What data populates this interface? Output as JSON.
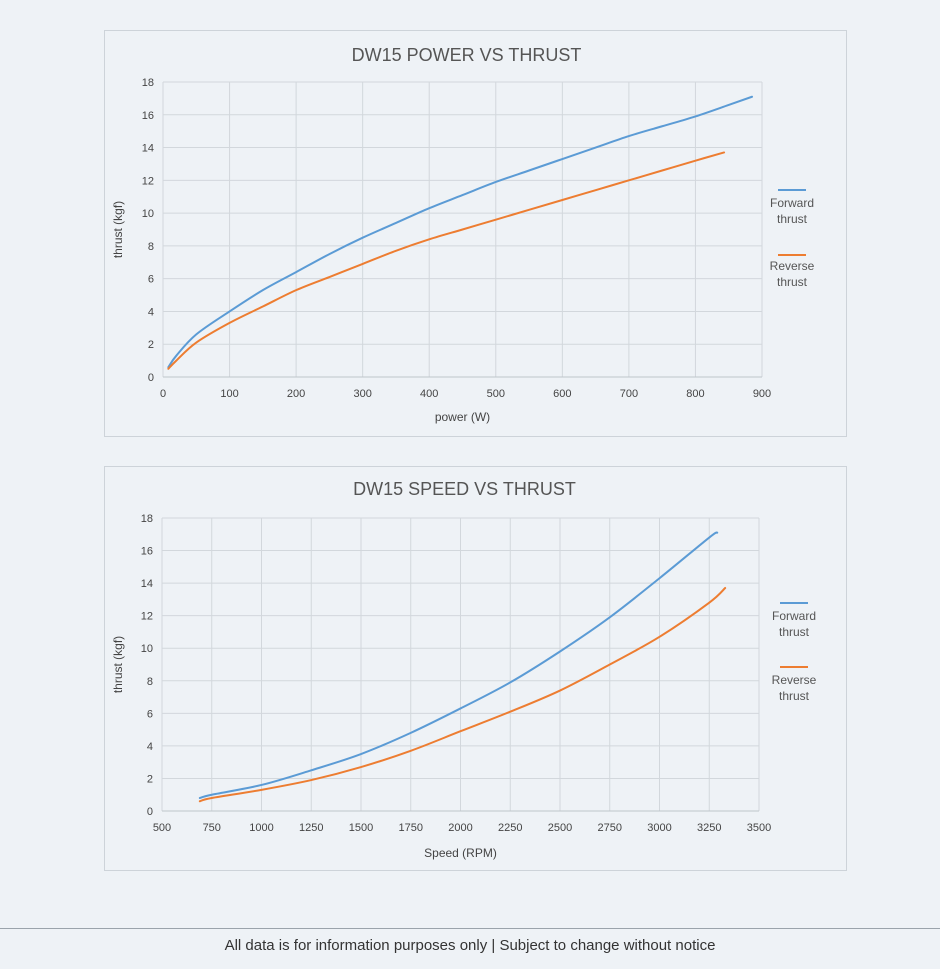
{
  "chart_data": [
    {
      "type": "line",
      "title": "DW15 POWER VS THRUST",
      "xlabel": "power (W)",
      "ylabel": "thrust (kgf)",
      "xlim": [
        0,
        900
      ],
      "ylim": [
        0,
        18
      ],
      "xticks": [
        "0",
        "100",
        "200",
        "300",
        "400",
        "500",
        "600",
        "700",
        "800",
        "900"
      ],
      "yticks": [
        "0",
        "2",
        "4",
        "6",
        "8",
        "10",
        "12",
        "14",
        "16",
        "18"
      ],
      "grid": true,
      "legend": "right",
      "series": [
        {
          "name": "Forward thrust",
          "color": "#5b9bd5",
          "x": [
            8,
            20,
            50,
            100,
            150,
            200,
            250,
            300,
            350,
            400,
            450,
            500,
            550,
            600,
            650,
            700,
            750,
            800,
            850,
            885
          ],
          "y": [
            0.6,
            1.3,
            2.6,
            4.0,
            5.3,
            6.4,
            7.5,
            8.5,
            9.4,
            10.3,
            11.1,
            11.9,
            12.6,
            13.3,
            14.0,
            14.7,
            15.3,
            15.9,
            16.6,
            17.1
          ]
        },
        {
          "name": "Reverse thrust",
          "color": "#ed7d31",
          "x": [
            8,
            20,
            50,
            100,
            150,
            200,
            250,
            300,
            350,
            400,
            450,
            500,
            550,
            600,
            650,
            700,
            750,
            800,
            843
          ],
          "y": [
            0.5,
            1.0,
            2.1,
            3.3,
            4.3,
            5.3,
            6.1,
            6.9,
            7.7,
            8.4,
            9.0,
            9.6,
            10.2,
            10.8,
            11.4,
            12.0,
            12.6,
            13.2,
            13.7
          ]
        }
      ]
    },
    {
      "type": "line",
      "title": "DW15 SPEED VS THRUST",
      "xlabel": "Speed (RPM)",
      "ylabel": "thrust (kgf)",
      "xlim": [
        500,
        3500
      ],
      "ylim": [
        0,
        18
      ],
      "xticks": [
        "500",
        "750",
        "1000",
        "1250",
        "1500",
        "1750",
        "2000",
        "2250",
        "2500",
        "2750",
        "3000",
        "3250",
        "3500"
      ],
      "yticks": [
        "0",
        "2",
        "4",
        "6",
        "8",
        "10",
        "12",
        "14",
        "16",
        "18"
      ],
      "grid": true,
      "legend": "right",
      "series": [
        {
          "name": "Forward thrust",
          "color": "#5b9bd5",
          "x": [
            690,
            750,
            1000,
            1250,
            1500,
            1750,
            2000,
            2250,
            2500,
            2750,
            3000,
            3250,
            3290
          ],
          "y": [
            0.8,
            1.0,
            1.6,
            2.5,
            3.5,
            4.8,
            6.3,
            7.9,
            9.8,
            11.9,
            14.3,
            16.8,
            17.1
          ]
        },
        {
          "name": "Reverse thrust",
          "color": "#ed7d31",
          "x": [
            690,
            750,
            1000,
            1250,
            1500,
            1750,
            2000,
            2250,
            2500,
            2750,
            3000,
            3250,
            3330
          ],
          "y": [
            0.6,
            0.8,
            1.3,
            1.9,
            2.7,
            3.7,
            4.9,
            6.1,
            7.4,
            9.0,
            10.7,
            12.8,
            13.7
          ]
        }
      ]
    }
  ],
  "footer": "All data is for information purposes only | Subject to change without notice"
}
